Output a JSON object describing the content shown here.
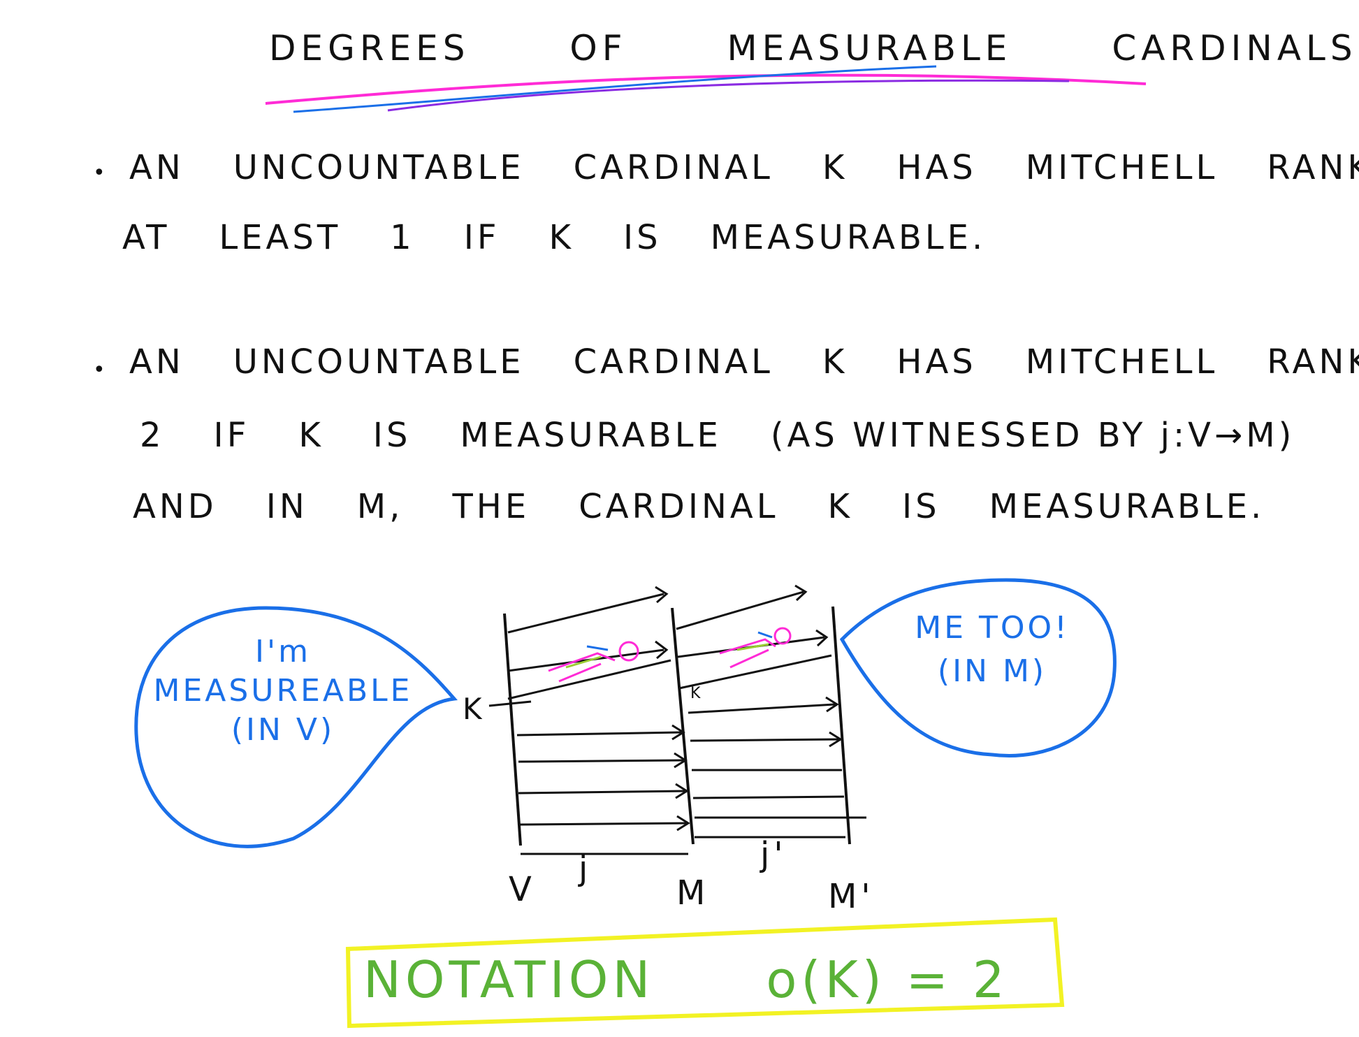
{
  "title": {
    "words": [
      "DEGREES",
      "OF",
      "MEASURABLE",
      "CARDINALS"
    ],
    "underline_colors": [
      "#ff2bd6",
      "#1a6fe8",
      "#8a2be2"
    ]
  },
  "bullet_symbol": "•",
  "bullets": [
    {
      "lines": [
        [
          "AN",
          "UNCOUNTABLE",
          "CARDINAL",
          "K",
          "HAS",
          "MITCHELL",
          "RANK"
        ],
        [
          "AT",
          "LEAST",
          "1",
          "IF",
          "K",
          "IS",
          "MEASURABLE."
        ]
      ]
    },
    {
      "lines": [
        [
          "AN",
          "UNCOUNTABLE",
          "CARDINAL",
          "K",
          "HAS",
          "MITCHELL",
          "RANK"
        ],
        [
          "2",
          "IF",
          "K",
          "IS",
          "MEASURABLE",
          "(AS WITNESSED BY j:V→M)"
        ],
        [
          "AND",
          "IN",
          "M,",
          "THE",
          "CARDINAL",
          "K",
          "IS",
          "MEASURABLE."
        ]
      ]
    }
  ],
  "diagram": {
    "left_bubble": [
      "I'm",
      "MEASUREABLE",
      "(IN V)"
    ],
    "right_bubble": [
      "ME TOO!",
      "(IN M)"
    ],
    "bubble_color": "#1a6fe8",
    "kappa_left": "K",
    "kappa_mid": "K",
    "labels": {
      "v": "V",
      "j": "j",
      "m": "M",
      "j_prime": "j'",
      "m_prime": "M'"
    },
    "figure_colors": [
      "#ff2bd6",
      "#9acd32",
      "#1a6fe8"
    ]
  },
  "notation": {
    "label": "NOTATION",
    "formula": "o(K) = 2",
    "text_color": "#5ab237",
    "box_color": "#f2f224"
  }
}
